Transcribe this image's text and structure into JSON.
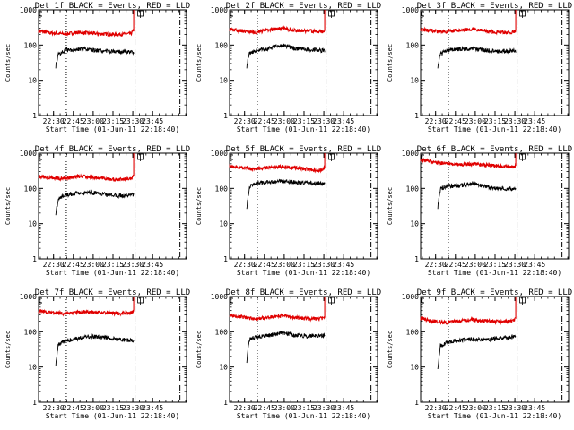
{
  "chart_data": [
    {
      "type": "line",
      "title": "Det 1f BLACK = Events, RED = LLD",
      "ylabel": "Counts/sec",
      "xlabel": "Start Time (01-Jun-11 22:18:40)",
      "yscale": "log",
      "ylim": [
        1,
        1000
      ],
      "y_ticks": [
        "1",
        "10",
        "100",
        "1000"
      ],
      "x_ticks": [
        "22:30",
        "22:45",
        "23:00",
        "23:15",
        "23:30",
        "23:45"
      ],
      "x_tick_minutes": [
        11.33,
        26.33,
        41.33,
        56.33,
        71.33,
        86.33
      ],
      "xlim_minutes": [
        0,
        112
      ],
      "markers": {
        "dotted": 21,
        "dashdot1": 73,
        "dashdot2": 107
      },
      "legend": "top-left",
      "series": [
        {
          "name": "RED",
          "color": "#e00000",
          "level": [
            [
              0,
              250
            ],
            [
              10,
              220
            ],
            [
              20,
              205
            ],
            [
              30,
              230
            ],
            [
              40,
              215
            ],
            [
              50,
              205
            ],
            [
              60,
              200
            ],
            [
              70,
              210
            ],
            [
              72,
              260
            ]
          ],
          "spike": 1000
        },
        {
          "name": "BLACK",
          "color": "#000000",
          "start": 13,
          "level": [
            [
              13,
              25
            ],
            [
              15,
              55
            ],
            [
              20,
              70
            ],
            [
              30,
              78
            ],
            [
              40,
              72
            ],
            [
              50,
              68
            ],
            [
              60,
              65
            ],
            [
              72,
              62
            ]
          ]
        }
      ]
    },
    {
      "type": "line",
      "title": "Det 2f BLACK = Events, RED = LLD",
      "ylabel": "Counts/sec",
      "xlabel": "Start Time (01-Jun-11 22:18:40)",
      "yscale": "log",
      "ylim": [
        1,
        1000
      ],
      "y_ticks": [
        "1",
        "10",
        "100",
        "1000"
      ],
      "x_ticks": [
        "22:30",
        "22:45",
        "23:00",
        "23:15",
        "23:30",
        "23:45"
      ],
      "x_tick_minutes": [
        11.33,
        26.33,
        41.33,
        56.33,
        71.33,
        86.33
      ],
      "xlim_minutes": [
        0,
        112
      ],
      "markers": {
        "dotted": 21,
        "dashdot1": 73,
        "dashdot2": 107
      },
      "legend": "top-left",
      "series": [
        {
          "name": "RED",
          "color": "#e00000",
          "level": [
            [
              0,
              280
            ],
            [
              10,
              250
            ],
            [
              20,
              230
            ],
            [
              30,
              270
            ],
            [
              40,
              300
            ],
            [
              50,
              260
            ],
            [
              60,
              250
            ],
            [
              70,
              240
            ],
            [
              72,
              260
            ]
          ],
          "spike": 1000
        },
        {
          "name": "BLACK",
          "color": "#000000",
          "start": 13,
          "level": [
            [
              13,
              25
            ],
            [
              15,
              60
            ],
            [
              20,
              70
            ],
            [
              30,
              80
            ],
            [
              40,
              100
            ],
            [
              50,
              80
            ],
            [
              60,
              75
            ],
            [
              72,
              70
            ]
          ]
        }
      ]
    },
    {
      "type": "line",
      "title": "Det 3f BLACK = Events, RED = LLD",
      "ylabel": "Counts/sec",
      "xlabel": "Start Time (01-Jun-11 22:18:40)",
      "yscale": "log",
      "ylim": [
        1,
        1000
      ],
      "y_ticks": [
        "1",
        "10",
        "100",
        "1000"
      ],
      "x_ticks": [
        "22:30",
        "22:45",
        "23:00",
        "23:15",
        "23:30",
        "23:45"
      ],
      "x_tick_minutes": [
        11.33,
        26.33,
        41.33,
        56.33,
        71.33,
        86.33
      ],
      "xlim_minutes": [
        0,
        112
      ],
      "markers": {
        "dotted": 21,
        "dashdot1": 73,
        "dashdot2": 107
      },
      "legend": "top-left",
      "series": [
        {
          "name": "RED",
          "color": "#e00000",
          "level": [
            [
              0,
              280
            ],
            [
              10,
              250
            ],
            [
              20,
              240
            ],
            [
              30,
              270
            ],
            [
              40,
              280
            ],
            [
              50,
              250
            ],
            [
              60,
              230
            ],
            [
              70,
              230
            ],
            [
              72,
              260
            ]
          ],
          "spike": 1000
        },
        {
          "name": "BLACK",
          "color": "#000000",
          "start": 13,
          "level": [
            [
              13,
              25
            ],
            [
              15,
              55
            ],
            [
              20,
              70
            ],
            [
              30,
              78
            ],
            [
              40,
              80
            ],
            [
              50,
              70
            ],
            [
              60,
              65
            ],
            [
              72,
              70
            ]
          ]
        }
      ]
    },
    {
      "type": "line",
      "title": "Det 4f BLACK = Events, RED = LLD",
      "ylabel": "Counts/sec",
      "xlabel": "Start Time (01-Jun-11 22:18:40)",
      "yscale": "log",
      "ylim": [
        1,
        1000
      ],
      "y_ticks": [
        "1",
        "10",
        "100",
        "1000"
      ],
      "x_ticks": [
        "22:30",
        "22:45",
        "23:00",
        "23:15",
        "23:30",
        "23:45"
      ],
      "x_tick_minutes": [
        11.33,
        26.33,
        41.33,
        56.33,
        71.33,
        86.33
      ],
      "xlim_minutes": [
        0,
        112
      ],
      "markers": {
        "dotted": 21,
        "dashdot1": 73,
        "dashdot2": 107
      },
      "legend": "top-left",
      "series": [
        {
          "name": "RED",
          "color": "#e00000",
          "level": [
            [
              0,
              220
            ],
            [
              10,
              200
            ],
            [
              20,
              190
            ],
            [
              30,
              220
            ],
            [
              40,
              210
            ],
            [
              50,
              190
            ],
            [
              60,
              180
            ],
            [
              70,
              190
            ],
            [
              72,
              240
            ]
          ],
          "spike": 1000
        },
        {
          "name": "BLACK",
          "color": "#000000",
          "start": 13,
          "level": [
            [
              13,
              20
            ],
            [
              15,
              50
            ],
            [
              20,
              65
            ],
            [
              30,
              72
            ],
            [
              40,
              75
            ],
            [
              50,
              68
            ],
            [
              60,
              62
            ],
            [
              72,
              65
            ]
          ]
        }
      ]
    },
    {
      "type": "line",
      "title": "Det 5f BLACK = Events, RED = LLD",
      "ylabel": "Counts/sec",
      "xlabel": "Start Time (01-Jun-11 22:18:40)",
      "yscale": "log",
      "ylim": [
        1,
        1000
      ],
      "y_ticks": [
        "1",
        "10",
        "100",
        "1000"
      ],
      "x_ticks": [
        "22:30",
        "22:45",
        "23:00",
        "23:15",
        "23:30",
        "23:45"
      ],
      "x_tick_minutes": [
        11.33,
        26.33,
        41.33,
        56.33,
        71.33,
        86.33
      ],
      "xlim_minutes": [
        0,
        112
      ],
      "markers": {
        "dotted": 21,
        "dashdot1": 73,
        "dashdot2": 107
      },
      "legend": "top-left",
      "series": [
        {
          "name": "RED",
          "color": "#e00000",
          "level": [
            [
              0,
              450
            ],
            [
              10,
              380
            ],
            [
              20,
              350
            ],
            [
              30,
              400
            ],
            [
              40,
              420
            ],
            [
              50,
              380
            ],
            [
              60,
              350
            ],
            [
              70,
              320
            ],
            [
              72,
              400
            ]
          ],
          "spike": 1000
        },
        {
          "name": "BLACK",
          "color": "#000000",
          "start": 13,
          "level": [
            [
              13,
              30
            ],
            [
              15,
              110
            ],
            [
              20,
              140
            ],
            [
              30,
              150
            ],
            [
              40,
              160
            ],
            [
              50,
              150
            ],
            [
              60,
              140
            ],
            [
              72,
              135
            ]
          ]
        }
      ]
    },
    {
      "type": "line",
      "title": "Det 6f BLACK = Events, RED = LLD",
      "ylabel": "Counts/sec",
      "xlabel": "Start Time (01-Jun-11 22:18:40)",
      "yscale": "log",
      "ylim": [
        1,
        1000
      ],
      "y_ticks": [
        "1",
        "10",
        "100",
        "1000"
      ],
      "x_ticks": [
        "22:30",
        "22:45",
        "23:00",
        "23:15",
        "23:30",
        "23:45"
      ],
      "x_tick_minutes": [
        11.33,
        26.33,
        41.33,
        56.33,
        71.33,
        86.33
      ],
      "xlim_minutes": [
        0,
        112
      ],
      "markers": {
        "dotted": 21,
        "dashdot1": 73,
        "dashdot2": 107
      },
      "legend": "top-left",
      "series": [
        {
          "name": "RED",
          "color": "#e00000",
          "level": [
            [
              0,
              650
            ],
            [
              10,
              560
            ],
            [
              20,
              500
            ],
            [
              30,
              480
            ],
            [
              40,
              490
            ],
            [
              50,
              460
            ],
            [
              60,
              430
            ],
            [
              70,
              400
            ],
            [
              72,
              450
            ]
          ],
          "spike": 1000
        },
        {
          "name": "BLACK",
          "color": "#000000",
          "start": 13,
          "level": [
            [
              13,
              30
            ],
            [
              15,
              100
            ],
            [
              20,
              115
            ],
            [
              30,
              120
            ],
            [
              40,
              140
            ],
            [
              50,
              110
            ],
            [
              60,
              100
            ],
            [
              72,
              95
            ]
          ]
        }
      ]
    },
    {
      "type": "line",
      "title": "Det 7f BLACK = Events, RED = LLD",
      "ylabel": "Counts/sec",
      "xlabel": "Start Time (01-Jun-11 22:18:40)",
      "yscale": "log",
      "ylim": [
        1,
        1000
      ],
      "y_ticks": [
        "1",
        "10",
        "100",
        "1000"
      ],
      "x_ticks": [
        "22:30",
        "22:45",
        "23:00",
        "23:15",
        "23:30",
        "23:45"
      ],
      "x_tick_minutes": [
        11.33,
        26.33,
        41.33,
        56.33,
        71.33,
        86.33
      ],
      "xlim_minutes": [
        0,
        112
      ],
      "markers": {
        "dotted": 21,
        "dashdot1": 73,
        "dashdot2": 107
      },
      "legend": "top-left",
      "series": [
        {
          "name": "RED",
          "color": "#e00000",
          "level": [
            [
              0,
              380
            ],
            [
              10,
              350
            ],
            [
              20,
              330
            ],
            [
              30,
              360
            ],
            [
              40,
              370
            ],
            [
              50,
              350
            ],
            [
              60,
              330
            ],
            [
              70,
              340
            ],
            [
              72,
              380
            ]
          ],
          "spike": 1000
        },
        {
          "name": "BLACK",
          "color": "#000000",
          "start": 13,
          "level": [
            [
              13,
              12
            ],
            [
              15,
              45
            ],
            [
              20,
              55
            ],
            [
              30,
              65
            ],
            [
              40,
              75
            ],
            [
              50,
              68
            ],
            [
              60,
              62
            ],
            [
              72,
              55
            ]
          ]
        }
      ]
    },
    {
      "type": "line",
      "title": "Det 8f BLACK = Events, RED = LLD",
      "ylabel": "Counts/sec",
      "xlabel": "Start Time (01-Jun-11 22:18:40)",
      "yscale": "log",
      "ylim": [
        1,
        1000
      ],
      "y_ticks": [
        "1",
        "10",
        "100",
        "1000"
      ],
      "x_ticks": [
        "22:30",
        "22:45",
        "23:00",
        "23:15",
        "23:30",
        "23:45"
      ],
      "x_tick_minutes": [
        11.33,
        26.33,
        41.33,
        56.33,
        71.33,
        86.33
      ],
      "xlim_minutes": [
        0,
        112
      ],
      "markers": {
        "dotted": 21,
        "dashdot1": 73,
        "dashdot2": 107
      },
      "legend": "top-left",
      "series": [
        {
          "name": "RED",
          "color": "#e00000",
          "level": [
            [
              0,
              300
            ],
            [
              10,
              260
            ],
            [
              20,
              230
            ],
            [
              30,
              260
            ],
            [
              40,
              290
            ],
            [
              50,
              250
            ],
            [
              60,
              230
            ],
            [
              70,
              240
            ],
            [
              72,
              270
            ]
          ],
          "spike": 1000
        },
        {
          "name": "BLACK",
          "color": "#000000",
          "start": 13,
          "level": [
            [
              13,
              15
            ],
            [
              15,
              60
            ],
            [
              20,
              70
            ],
            [
              30,
              80
            ],
            [
              40,
              95
            ],
            [
              50,
              80
            ],
            [
              60,
              75
            ],
            [
              72,
              80
            ]
          ]
        }
      ]
    },
    {
      "type": "line",
      "title": "Det 9f BLACK = Events, RED = LLD",
      "ylabel": "Counts/sec",
      "xlabel": "Start Time (01-Jun-11 22:18:40)",
      "yscale": "log",
      "ylim": [
        1,
        1000
      ],
      "y_ticks": [
        "1",
        "10",
        "100",
        "1000"
      ],
      "x_ticks": [
        "22:30",
        "22:45",
        "23:00",
        "23:15",
        "23:30",
        "23:45"
      ],
      "x_tick_minutes": [
        11.33,
        26.33,
        41.33,
        56.33,
        71.33,
        86.33
      ],
      "xlim_minutes": [
        0,
        112
      ],
      "markers": {
        "dotted": 21,
        "dashdot1": 73,
        "dashdot2": 107
      },
      "legend": "top-left",
      "series": [
        {
          "name": "RED",
          "color": "#e00000",
          "level": [
            [
              0,
              240
            ],
            [
              10,
              200
            ],
            [
              20,
              180
            ],
            [
              30,
              210
            ],
            [
              40,
              220
            ],
            [
              50,
              200
            ],
            [
              60,
              190
            ],
            [
              70,
              200
            ],
            [
              72,
              240
            ]
          ],
          "spike": 1000
        },
        {
          "name": "BLACK",
          "color": "#000000",
          "start": 13,
          "level": [
            [
              13,
              10
            ],
            [
              15,
              40
            ],
            [
              20,
              50
            ],
            [
              30,
              58
            ],
            [
              40,
              62
            ],
            [
              50,
              60
            ],
            [
              60,
              65
            ],
            [
              72,
              75
            ]
          ]
        }
      ]
    }
  ]
}
